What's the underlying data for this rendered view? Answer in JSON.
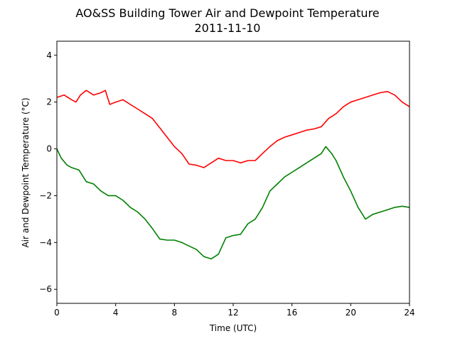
{
  "chart_data": {
    "type": "line",
    "title": "AO&SS Building Tower Air and Dewpoint Temperature",
    "subtitle": "2011-11-10",
    "xlabel": "Time (UTC)",
    "ylabel": "Air and Dewpoint Temperature (°C)",
    "xlim": [
      0,
      24
    ],
    "ylim": [
      -6.6,
      4.6
    ],
    "xticks": [
      0,
      4,
      8,
      12,
      16,
      20,
      24
    ],
    "xtick_labels": [
      "0",
      "4",
      "8",
      "12",
      "16",
      "20",
      "24"
    ],
    "yticks": [
      -6,
      -4,
      -2,
      0,
      2,
      4
    ],
    "ytick_labels": [
      "−6",
      "−4",
      "−2",
      "0",
      "2",
      "4"
    ],
    "grid": false,
    "series": [
      {
        "color": "#ff0000",
        "x": [
          0,
          0.5,
          1.0,
          1.3,
          1.6,
          2.0,
          2.5,
          3.0,
          3.3,
          3.6,
          4.0,
          4.5,
          5.0,
          5.5,
          6.0,
          6.5,
          7.0,
          7.5,
          8.0,
          8.5,
          9.0,
          9.5,
          10.0,
          10.5,
          11.0,
          11.5,
          12.0,
          12.5,
          13.0,
          13.5,
          14.0,
          14.5,
          15.0,
          15.5,
          16.0,
          16.5,
          17.0,
          17.5,
          18.0,
          18.5,
          19.0,
          19.5,
          20.0,
          20.5,
          21.0,
          21.5,
          22.0,
          22.5,
          23.0,
          23.5,
          24.0
        ],
        "y": [
          2.2,
          2.3,
          2.1,
          2.0,
          2.3,
          2.5,
          2.3,
          2.4,
          2.5,
          1.9,
          2.0,
          2.1,
          1.9,
          1.7,
          1.5,
          1.3,
          0.9,
          0.5,
          0.1,
          -0.2,
          -0.65,
          -0.7,
          -0.8,
          -0.6,
          -0.4,
          -0.5,
          -0.5,
          -0.6,
          -0.5,
          -0.5,
          -0.2,
          0.1,
          0.35,
          0.5,
          0.6,
          0.7,
          0.8,
          0.85,
          0.95,
          1.3,
          1.5,
          1.8,
          2.0,
          2.1,
          2.2,
          2.3,
          2.4,
          2.45,
          2.3,
          2.0,
          1.8
        ]
      },
      {
        "color": "#008000",
        "x": [
          0,
          0.3,
          0.7,
          1.0,
          1.5,
          2.0,
          2.5,
          3.0,
          3.5,
          4.0,
          4.5,
          5.0,
          5.5,
          6.0,
          6.5,
          7.0,
          7.5,
          8.0,
          8.5,
          9.0,
          9.5,
          10.0,
          10.5,
          11.0,
          11.5,
          12.0,
          12.5,
          13.0,
          13.5,
          14.0,
          14.5,
          15.0,
          15.5,
          16.0,
          16.5,
          17.0,
          17.5,
          18.0,
          18.3,
          18.7,
          19.0,
          19.5,
          20.0,
          20.5,
          21.0,
          21.5,
          22.0,
          22.5,
          23.0,
          23.5,
          24.0
        ],
        "y": [
          0.0,
          -0.4,
          -0.7,
          -0.8,
          -0.9,
          -1.4,
          -1.5,
          -1.8,
          -2.0,
          -2.0,
          -2.2,
          -2.5,
          -2.7,
          -3.0,
          -3.4,
          -3.85,
          -3.9,
          -3.9,
          -4.0,
          -4.15,
          -4.3,
          -4.6,
          -4.7,
          -4.5,
          -3.8,
          -3.7,
          -3.65,
          -3.2,
          -3.0,
          -2.5,
          -1.8,
          -1.5,
          -1.2,
          -1.0,
          -0.8,
          -0.6,
          -0.4,
          -0.2,
          0.1,
          -0.2,
          -0.5,
          -1.2,
          -1.8,
          -2.5,
          -3.0,
          -2.8,
          -2.7,
          -2.6,
          -2.5,
          -2.45,
          -2.5
        ]
      }
    ]
  }
}
